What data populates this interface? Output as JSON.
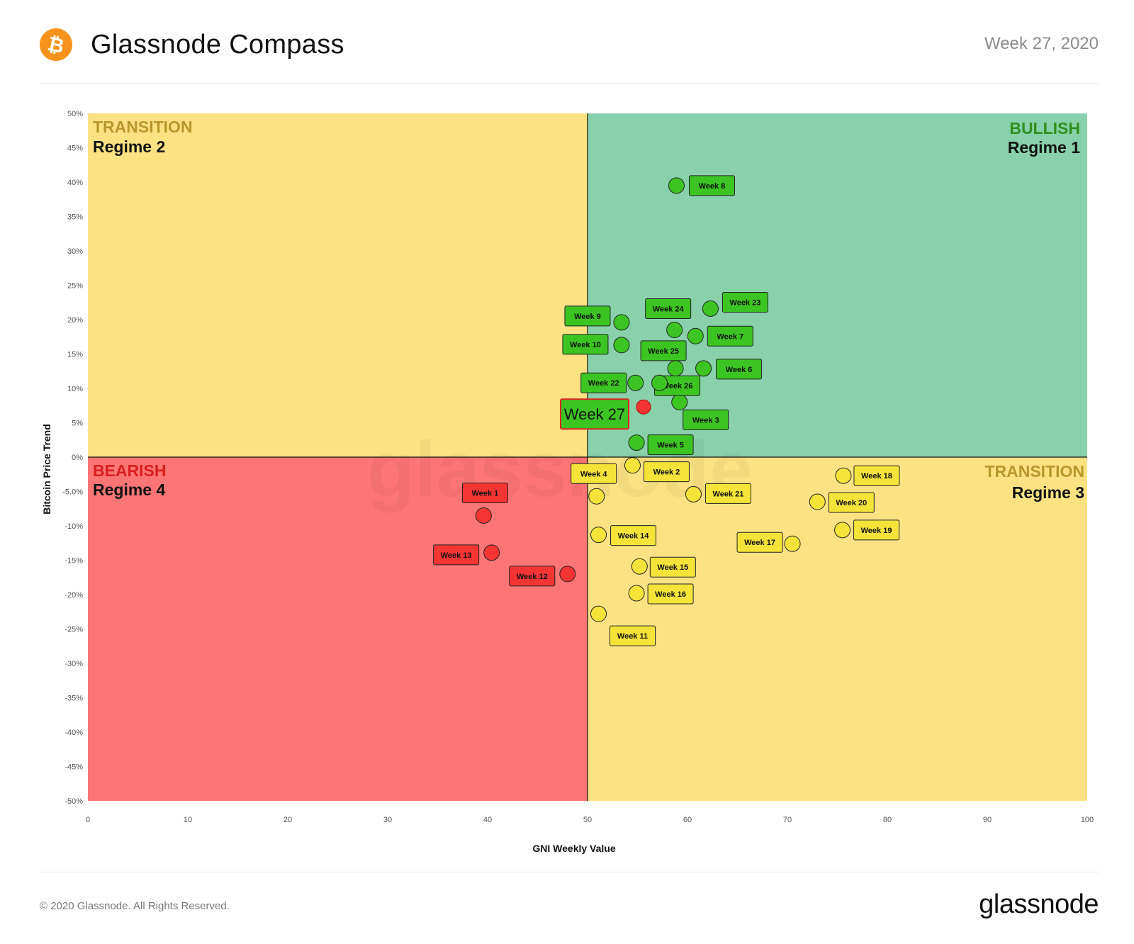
{
  "header": {
    "title": "Glassnode Compass",
    "week": "Week 27, 2020"
  },
  "footer": {
    "copyright": "© 2020 Glassnode. All Rights Reserved.",
    "brand": "glassnode"
  },
  "watermark": "glassnode",
  "icons": {
    "logo": "bitcoin-icon"
  },
  "colors": {
    "bullish": "#88d1aa",
    "transition": "#fde283",
    "bearish": "#fd7575",
    "green_point": "#3cc522",
    "yellow_point": "#f5e33a",
    "red_point": "#f53434",
    "bullish_text": "#2f8f1e",
    "transition_text": "#b8962a",
    "bearish_text": "#d81e1e",
    "btc_orange": "#f7931a"
  },
  "chart_data": {
    "type": "scatter",
    "title": "Glassnode Compass",
    "xlabel": "GNI  Weekly Value",
    "ylabel": "Bitcoin  Price Trend",
    "xlim": [
      0,
      100
    ],
    "ylim": [
      -50,
      50
    ],
    "xticks": [
      "0",
      "10",
      "20",
      "30",
      "40",
      "50",
      "60",
      "70",
      "80",
      "90",
      "100"
    ],
    "yticks": [
      "50%",
      "45%",
      "40%",
      "35%",
      "30%",
      "25%",
      "20%",
      "15%",
      "10%",
      "5%",
      "0%",
      "-5.0%",
      "-10%",
      "-15%",
      "-20%",
      "-25%",
      "-30%",
      "-35%",
      "-40%",
      "-45%",
      "-50%"
    ],
    "quadrants": [
      {
        "name": "TRANSITION",
        "regime": "Regime 2",
        "position": "top-left"
      },
      {
        "name": "BULLISH",
        "regime": "Regime 1",
        "position": "top-right"
      },
      {
        "name": "BEARISH",
        "regime": "Regime 4",
        "position": "bottom-left"
      },
      {
        "name": "TRANSITION",
        "regime": "Regime 3",
        "position": "bottom-right"
      }
    ],
    "points": [
      {
        "label": "Week 1",
        "x": 39.6,
        "y": -8.5,
        "regime": "bearish"
      },
      {
        "label": "Week 2",
        "x": 54.5,
        "y": -1.2,
        "regime": "transition"
      },
      {
        "label": "Week 3",
        "x": 59.2,
        "y": 8.0,
        "regime": "bullish"
      },
      {
        "label": "Week 4",
        "x": 50.9,
        "y": -5.7,
        "regime": "transition"
      },
      {
        "label": "Week 5",
        "x": 54.9,
        "y": 2.1,
        "regime": "bullish"
      },
      {
        "label": "Week 6",
        "x": 61.6,
        "y": 12.9,
        "regime": "bullish"
      },
      {
        "label": "Week 7",
        "x": 60.8,
        "y": 17.6,
        "regime": "bullish"
      },
      {
        "label": "Week 8",
        "x": 58.9,
        "y": 39.5,
        "regime": "bullish"
      },
      {
        "label": "Week 9",
        "x": 53.4,
        "y": 19.6,
        "regime": "bullish"
      },
      {
        "label": "Week 10",
        "x": 53.4,
        "y": 16.3,
        "regime": "bullish"
      },
      {
        "label": "Week 11",
        "x": 51.1,
        "y": -22.8,
        "regime": "transition"
      },
      {
        "label": "Week 12",
        "x": 48.0,
        "y": -17.0,
        "regime": "bearish"
      },
      {
        "label": "Week 13",
        "x": 40.4,
        "y": -13.9,
        "regime": "bearish"
      },
      {
        "label": "Week 14",
        "x": 51.1,
        "y": -11.3,
        "regime": "transition"
      },
      {
        "label": "Week 15",
        "x": 55.2,
        "y": -15.9,
        "regime": "transition"
      },
      {
        "label": "Week 16",
        "x": 54.9,
        "y": -19.8,
        "regime": "transition"
      },
      {
        "label": "Week 17",
        "x": 70.5,
        "y": -12.6,
        "regime": "transition"
      },
      {
        "label": "Week 18",
        "x": 75.6,
        "y": -2.7,
        "regime": "transition"
      },
      {
        "label": "Week 19",
        "x": 75.5,
        "y": -10.6,
        "regime": "transition"
      },
      {
        "label": "Week 20",
        "x": 73.0,
        "y": -6.5,
        "regime": "transition"
      },
      {
        "label": "Week 21",
        "x": 60.6,
        "y": -5.4,
        "regime": "transition"
      },
      {
        "label": "Week 22",
        "x": 54.8,
        "y": 10.8,
        "regime": "bullish"
      },
      {
        "label": "Week 23",
        "x": 62.3,
        "y": 21.6,
        "regime": "bullish"
      },
      {
        "label": "Week 24",
        "x": 58.7,
        "y": 18.5,
        "regime": "bullish"
      },
      {
        "label": "Week 25",
        "x": 58.8,
        "y": 12.9,
        "regime": "bullish"
      },
      {
        "label": "Week 26",
        "x": 57.2,
        "y": 10.8,
        "regime": "bullish"
      },
      {
        "label": "Week 27",
        "x": 55.6,
        "y": 7.3,
        "regime": "bullish",
        "current": true
      }
    ]
  }
}
